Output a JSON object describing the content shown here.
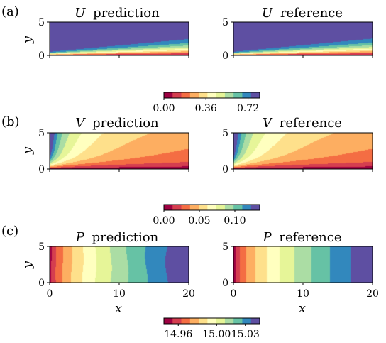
{
  "chart_data": {
    "type": "heatmap",
    "colormap": "Spectral",
    "palette": [
      "#9e0142",
      "#d53e4f",
      "#f46d43",
      "#fdae61",
      "#fee08b",
      "#ffffbf",
      "#e6f598",
      "#abdda4",
      "#66c2a5",
      "#3288bd",
      "#5e4fa2"
    ],
    "x_range": [
      0,
      20
    ],
    "y_range": [
      0,
      5
    ],
    "x_ticks": [
      "0",
      "10",
      "20"
    ],
    "y_ticks": [
      "0",
      "5"
    ],
    "xlabel": "x",
    "ylabel": "y",
    "rows": [
      {
        "panel_label": "(a)",
        "field": "U",
        "titles": {
          "prediction": "prediction",
          "reference": "reference"
        },
        "colorbar_ticks": [
          "0.00",
          "0.36",
          "0.72"
        ],
        "colorbar_range": [
          0.0,
          0.82
        ],
        "description": "Boundary-layer velocity U; near 0 at the wall, growing to ~0.8 away from it; layer thickens downstream."
      },
      {
        "panel_label": "(b)",
        "field": "V",
        "titles": {
          "prediction": "prediction",
          "reference": "reference"
        },
        "colorbar_ticks": [
          "0.00",
          "0.05",
          "0.10"
        ],
        "colorbar_range": [
          0.0,
          0.135
        ],
        "description": "Vertical velocity V; highest near the leading edge top-left, decaying downstream."
      },
      {
        "panel_label": "(c)",
        "field": "P",
        "titles": {
          "prediction": "prediction",
          "reference": "reference"
        },
        "colorbar_ticks": [
          "14.96",
          "15.00",
          "15.03"
        ],
        "colorbar_range": [
          14.945,
          15.045
        ],
        "description": "Pressure P; varies mostly with x, increasing from left to right."
      }
    ]
  }
}
